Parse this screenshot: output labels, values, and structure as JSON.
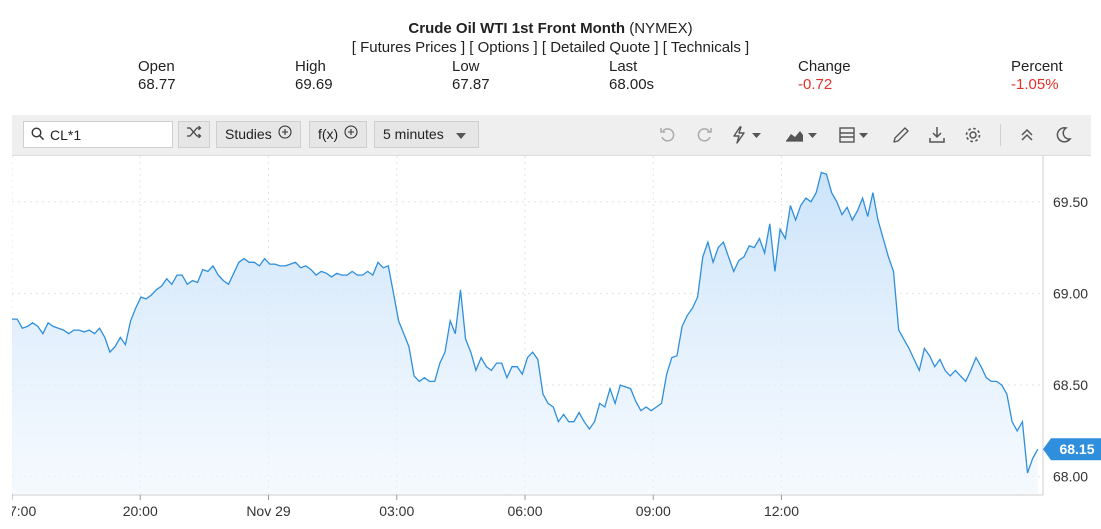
{
  "header": {
    "title_main": "Crude Oil WTI 1st Front Month",
    "title_exchange": "(NYMEX)",
    "links": [
      "Futures Prices",
      "Options",
      "Detailed Quote",
      "Technicals"
    ]
  },
  "stats": [
    {
      "label": "Open",
      "value": "68.77",
      "negative": false
    },
    {
      "label": "High",
      "value": "69.69",
      "negative": false
    },
    {
      "label": "Low",
      "value": "67.87",
      "negative": false
    },
    {
      "label": "Last",
      "value": "68.00s",
      "negative": false
    },
    {
      "label": "Change",
      "value": "-0.72",
      "negative": true
    },
    {
      "label": "Percent",
      "value": "-1.05%",
      "negative": true
    }
  ],
  "toolbar": {
    "symbol_value": "CL*1",
    "studies_label": "Studies",
    "fx_label": "f(x)",
    "interval_label": "5 minutes",
    "icons": [
      "undo-icon",
      "redo-icon",
      "lightning-icon",
      "chart-type-icon",
      "layout-icon",
      "pencil-icon",
      "download-icon",
      "gear-icon",
      "collapse-icon",
      "moon-icon"
    ]
  },
  "colors": {
    "line": "#2f8fdc",
    "fill_top": "#c9e2fa",
    "price_badge": "#2f8fdc",
    "negative": "#e0302b"
  },
  "chart_data": {
    "type": "area",
    "y_ticks": [
      "68.00",
      "68.50",
      "69.00",
      "69.50"
    ],
    "ylim": [
      67.9,
      69.75
    ],
    "x_ticks": [
      {
        "label": "7:00",
        "pos": 0
      },
      {
        "label": "20:00",
        "pos": 12
      },
      {
        "label": "Nov 29",
        "pos": 24
      },
      {
        "label": "03:00",
        "pos": 36
      },
      {
        "label": "06:00",
        "pos": 48
      },
      {
        "label": "09:00",
        "pos": 60
      },
      {
        "label": "12:00",
        "pos": 72
      }
    ],
    "x_range": [
      0,
      82
    ],
    "grid": true,
    "last_price_label": "68.15",
    "last_price": 68.15,
    "points": [
      [
        0.0,
        68.86
      ],
      [
        0.5,
        68.86
      ],
      [
        1.0,
        68.81
      ],
      [
        1.5,
        68.82
      ],
      [
        2.0,
        68.84
      ],
      [
        2.5,
        68.82
      ],
      [
        3.0,
        68.78
      ],
      [
        3.5,
        68.84
      ],
      [
        4.0,
        68.82
      ],
      [
        4.5,
        68.81
      ],
      [
        5.0,
        68.8
      ],
      [
        5.5,
        68.78
      ],
      [
        6.0,
        68.8
      ],
      [
        6.5,
        68.8
      ],
      [
        7.0,
        68.79
      ],
      [
        7.5,
        68.8
      ],
      [
        8.0,
        68.78
      ],
      [
        8.5,
        68.81
      ],
      [
        9.0,
        68.76
      ],
      [
        9.5,
        68.68
      ],
      [
        10.0,
        68.71
      ],
      [
        10.5,
        68.76
      ],
      [
        11.0,
        68.72
      ],
      [
        11.5,
        68.85
      ],
      [
        12.0,
        68.92
      ],
      [
        12.5,
        68.98
      ],
      [
        13.0,
        68.97
      ],
      [
        13.5,
        68.99
      ],
      [
        14.0,
        69.02
      ],
      [
        14.5,
        69.04
      ],
      [
        15.0,
        69.08
      ],
      [
        15.5,
        69.05
      ],
      [
        16.0,
        69.1
      ],
      [
        16.5,
        69.1
      ],
      [
        17.0,
        69.05
      ],
      [
        17.5,
        69.07
      ],
      [
        18.0,
        69.06
      ],
      [
        18.5,
        69.13
      ],
      [
        19.0,
        69.12
      ],
      [
        19.5,
        69.15
      ],
      [
        20.0,
        69.1
      ],
      [
        20.5,
        69.07
      ],
      [
        21.0,
        69.05
      ],
      [
        21.5,
        69.11
      ],
      [
        22.0,
        69.17
      ],
      [
        22.5,
        69.19
      ],
      [
        23.0,
        69.17
      ],
      [
        23.5,
        69.17
      ],
      [
        24.0,
        69.15
      ],
      [
        24.5,
        69.19
      ],
      [
        25.0,
        69.16
      ],
      [
        25.5,
        69.16
      ],
      [
        26.0,
        69.15
      ],
      [
        26.5,
        69.15
      ],
      [
        27.0,
        69.16
      ],
      [
        27.5,
        69.17
      ],
      [
        28.0,
        69.14
      ],
      [
        28.5,
        69.15
      ],
      [
        29.0,
        69.13
      ],
      [
        29.5,
        69.1
      ],
      [
        30.0,
        69.12
      ],
      [
        30.5,
        69.11
      ],
      [
        31.0,
        69.09
      ],
      [
        31.5,
        69.11
      ],
      [
        32.0,
        69.1
      ],
      [
        32.5,
        69.1
      ],
      [
        33.0,
        69.12
      ],
      [
        33.5,
        69.1
      ],
      [
        34.0,
        69.1
      ],
      [
        34.5,
        69.12
      ],
      [
        35.0,
        69.1
      ],
      [
        35.5,
        69.17
      ],
      [
        36.0,
        69.14
      ],
      [
        36.5,
        69.15
      ],
      [
        37.0,
        69.0
      ],
      [
        37.5,
        68.85
      ],
      [
        38.0,
        68.78
      ],
      [
        38.5,
        68.71
      ],
      [
        39.0,
        68.55
      ],
      [
        39.5,
        68.52
      ],
      [
        40.0,
        68.54
      ],
      [
        40.5,
        68.52
      ],
      [
        41.0,
        68.52
      ],
      [
        41.5,
        68.62
      ],
      [
        42.0,
        68.68
      ],
      [
        42.5,
        68.85
      ],
      [
        43.0,
        68.78
      ],
      [
        43.5,
        69.02
      ],
      [
        44.0,
        68.75
      ],
      [
        44.5,
        68.68
      ],
      [
        45.0,
        68.58
      ],
      [
        45.5,
        68.65
      ],
      [
        46.0,
        68.6
      ],
      [
        46.5,
        68.58
      ],
      [
        47.0,
        68.62
      ],
      [
        47.5,
        68.62
      ],
      [
        48.0,
        68.54
      ],
      [
        48.5,
        68.6
      ],
      [
        49.0,
        68.6
      ],
      [
        49.5,
        68.56
      ],
      [
        50.0,
        68.65
      ],
      [
        50.5,
        68.68
      ]
    ],
    "points_b": [
      [
        51.0,
        68.64
      ],
      [
        51.5,
        68.45
      ],
      [
        52.0,
        68.4
      ],
      [
        52.5,
        68.38
      ],
      [
        53.0,
        68.3
      ],
      [
        53.5,
        68.34
      ],
      [
        54.0,
        68.3
      ],
      [
        54.5,
        68.3
      ],
      [
        55.0,
        68.35
      ],
      [
        55.5,
        68.3
      ],
      [
        56.0,
        68.26
      ],
      [
        56.5,
        68.3
      ],
      [
        57.0,
        68.4
      ],
      [
        57.5,
        68.38
      ],
      [
        58.0,
        68.48
      ],
      [
        58.5,
        68.4
      ],
      [
        59.0,
        68.5
      ],
      [
        59.5,
        68.49
      ],
      [
        60.0,
        68.48
      ],
      [
        60.5,
        68.41
      ],
      [
        61.0,
        68.36
      ],
      [
        61.5,
        68.38
      ],
      [
        62.0,
        68.36
      ],
      [
        62.5,
        68.38
      ],
      [
        63.0,
        68.4
      ],
      [
        63.5,
        68.56
      ],
      [
        64.0,
        68.65
      ],
      [
        64.5,
        68.66
      ],
      [
        65.0,
        68.82
      ],
      [
        65.5,
        68.88
      ],
      [
        66.0,
        68.92
      ],
      [
        66.5,
        68.98
      ],
      [
        67.0,
        69.2
      ],
      [
        67.5,
        69.28
      ],
      [
        68.0,
        69.17
      ],
      [
        68.5,
        69.25
      ],
      [
        69.0,
        69.28
      ],
      [
        69.5,
        69.2
      ],
      [
        70.0,
        69.12
      ],
      [
        70.5,
        69.18
      ],
      [
        71.0,
        69.2
      ],
      [
        71.5,
        69.26
      ],
      [
        72.0,
        69.25
      ],
      [
        72.5,
        69.3
      ],
      [
        73.0,
        69.22
      ],
      [
        73.5,
        69.38
      ],
      [
        74.0,
        69.12
      ],
      [
        74.5,
        69.35
      ],
      [
        75.0,
        69.3
      ],
      [
        75.5,
        69.48
      ],
      [
        76.0,
        69.4
      ],
      [
        76.5,
        69.48
      ],
      [
        77.0,
        69.52
      ],
      [
        77.5,
        69.5
      ],
      [
        78.0,
        69.55
      ],
      [
        78.5,
        69.66
      ],
      [
        79.0,
        69.65
      ],
      [
        79.5,
        69.55
      ],
      [
        80.0,
        69.5
      ],
      [
        80.5,
        69.43
      ],
      [
        81.0,
        69.47
      ],
      [
        81.5,
        69.4
      ],
      [
        82.0,
        69.45
      ],
      [
        82.5,
        69.52
      ]
    ],
    "points_c": [
      [
        83.0,
        69.42
      ],
      [
        83.5,
        69.55
      ],
      [
        84.0,
        69.4
      ],
      [
        84.5,
        69.3
      ],
      [
        85.0,
        69.2
      ],
      [
        85.5,
        69.12
      ],
      [
        86.0,
        68.8
      ],
      [
        86.5,
        68.75
      ],
      [
        87.0,
        68.7
      ],
      [
        87.5,
        68.64
      ],
      [
        88.0,
        68.58
      ],
      [
        88.5,
        68.7
      ],
      [
        89.0,
        68.66
      ],
      [
        89.5,
        68.6
      ],
      [
        90.0,
        68.64
      ],
      [
        90.5,
        68.58
      ],
      [
        91.0,
        68.55
      ],
      [
        91.5,
        68.58
      ],
      [
        92.0,
        68.55
      ],
      [
        92.5,
        68.52
      ],
      [
        93.0,
        68.58
      ],
      [
        93.5,
        68.65
      ],
      [
        94.0,
        68.6
      ],
      [
        94.5,
        68.54
      ],
      [
        95.0,
        68.52
      ],
      [
        95.5,
        68.52
      ],
      [
        96.0,
        68.5
      ],
      [
        96.5,
        68.45
      ],
      [
        97.0,
        68.3
      ],
      [
        97.5,
        68.25
      ],
      [
        98.0,
        68.3
      ],
      [
        98.5,
        68.02
      ],
      [
        99.0,
        68.1
      ],
      [
        99.5,
        68.15
      ]
    ]
  }
}
